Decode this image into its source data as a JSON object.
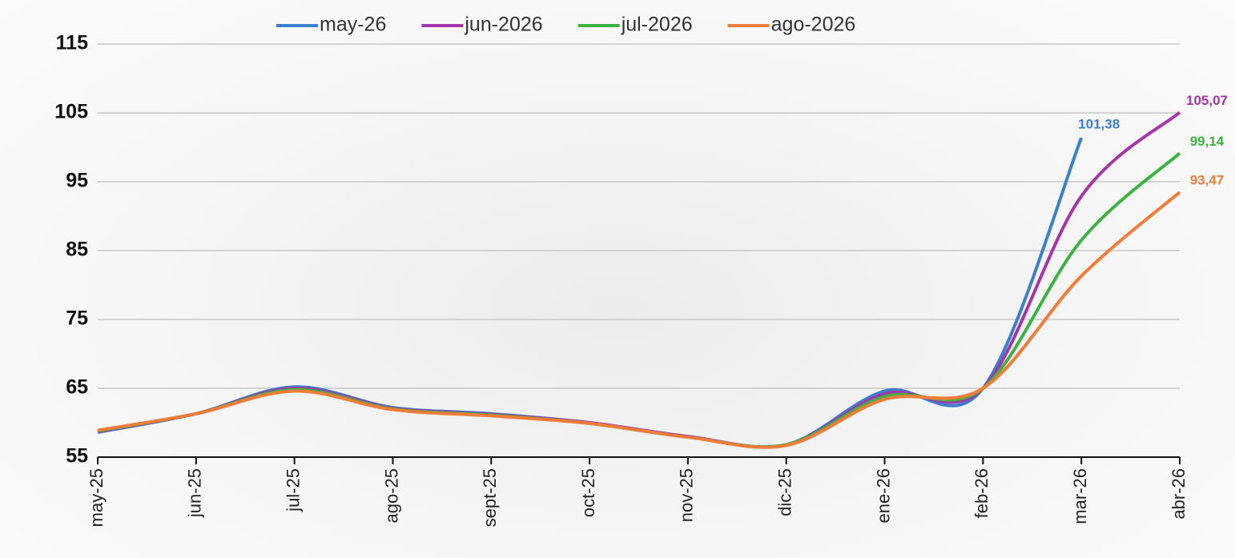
{
  "chart_data": {
    "type": "line",
    "categories": [
      "may-25",
      "jun-25",
      "jul-25",
      "ago-25",
      "sept-25",
      "oct-25",
      "nov-25",
      "dic-25",
      "ene-26",
      "feb-26",
      "mar-26",
      "abr-26"
    ],
    "series": [
      {
        "name": "may-26",
        "color": "#3b7fd1",
        "values": [
          58.6,
          61.3,
          65.2,
          62.2,
          61.3,
          60.0,
          58.0,
          56.8,
          64.6,
          65.0,
          101.38,
          null
        ],
        "value_labels": [
          null,
          null,
          null,
          null,
          null,
          null,
          null,
          null,
          null,
          null,
          "101,38",
          null
        ]
      },
      {
        "name": "jun-2026",
        "color": "#a535a8",
        "values": [
          58.7,
          61.3,
          65.0,
          62.1,
          61.2,
          60.0,
          58.0,
          56.8,
          64.2,
          65.0,
          92.9,
          105.07
        ],
        "value_labels": [
          null,
          null,
          null,
          null,
          null,
          null,
          null,
          null,
          null,
          null,
          null,
          "105,07"
        ]
      },
      {
        "name": "jul-2026",
        "color": "#3db243",
        "values": [
          58.8,
          61.3,
          64.8,
          62.0,
          61.1,
          59.9,
          57.9,
          56.8,
          63.8,
          65.0,
          86.5,
          99.14
        ],
        "value_labels": [
          null,
          null,
          null,
          null,
          null,
          null,
          null,
          null,
          null,
          null,
          null,
          "99,14"
        ]
      },
      {
        "name": "ago-2026",
        "color": "#f07c3a",
        "values": [
          58.9,
          61.3,
          64.6,
          61.9,
          61.0,
          59.9,
          57.9,
          56.7,
          63.4,
          65.0,
          81.3,
          93.47
        ],
        "value_labels": [
          null,
          null,
          null,
          null,
          null,
          null,
          null,
          null,
          null,
          null,
          null,
          "93,47"
        ]
      }
    ],
    "ylim": [
      55,
      115
    ],
    "yticks": [
      55,
      65,
      75,
      85,
      95,
      105,
      115
    ],
    "grid": true,
    "legend": "top"
  }
}
